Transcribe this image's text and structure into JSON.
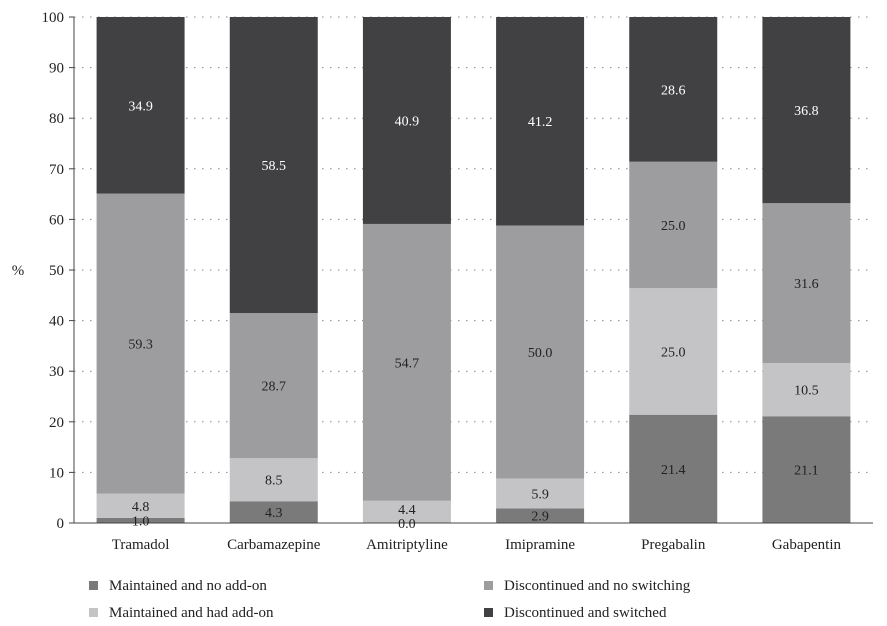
{
  "chart_data": {
    "type": "bar",
    "stacked": true,
    "percent": true,
    "categories": [
      "Tramadol",
      "Carbamazepine",
      "Amitriptyline",
      "Imipramine",
      "Pregabalin",
      "Gabapentin"
    ],
    "series": [
      {
        "name": "Maintained and no add-on",
        "color": "#7a7a7a",
        "label_color": "#222222",
        "values": [
          1.0,
          4.3,
          0.0,
          2.9,
          21.4,
          21.1
        ]
      },
      {
        "name": "Maintained and had add-on",
        "color": "#c4c4c6",
        "label_color": "#222222",
        "values": [
          4.8,
          8.5,
          4.4,
          5.9,
          25.0,
          10.5
        ]
      },
      {
        "name": "Discontinued and no switching",
        "color": "#9d9d9f",
        "label_color": "#222222",
        "values": [
          59.3,
          28.7,
          54.7,
          50.0,
          25.0,
          31.6
        ]
      },
      {
        "name": "Discontinued and switched",
        "color": "#414143",
        "label_color": "#ffffff",
        "values": [
          34.9,
          58.5,
          40.9,
          41.2,
          28.6,
          36.8
        ]
      }
    ],
    "ylabel": "%",
    "xlabel": "",
    "ylim": [
      0,
      100
    ],
    "yticks": [
      0,
      10,
      20,
      30,
      40,
      50,
      60,
      70,
      80,
      90,
      100
    ],
    "grid": "horizontal dotted",
    "legend": "bottom"
  }
}
